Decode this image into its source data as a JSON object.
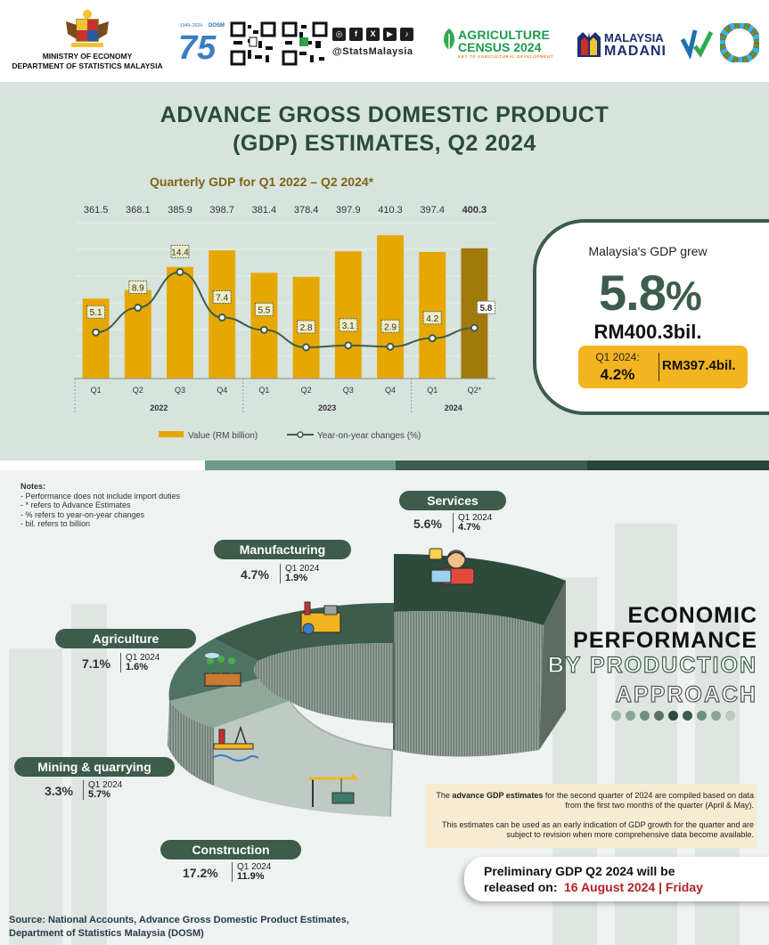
{
  "header": {
    "ministry_line1": "MINISTRY OF ECONOMY",
    "ministry_line2": "DEPARTMENT OF STATISTICS MALAYSIA",
    "dosm75_years": "1949–2024",
    "dosm75_label": "DOSM",
    "dosm75_number": "75",
    "social_handle": "@StatsMalaysia",
    "social_icons": [
      "instagram-icon",
      "facebook-icon",
      "x-icon",
      "youtube-icon",
      "tiktok-icon"
    ],
    "census_line1": "AGRICULTURE",
    "census_line2": "CENSUS 2024",
    "census_tagline": "KEY TO AGRICULTURAL DEVELOPMENT",
    "madani_line1": "MALAYSIA",
    "madani_line2": "MADANI"
  },
  "title": {
    "line1": "ADVANCE GROSS DOMESTIC PRODUCT",
    "line2": "(GDP) ESTIMATES, Q2 2024"
  },
  "chart_data": {
    "type": "bar",
    "title": "Quarterly GDP for Q1 2022 – Q2 2024*",
    "categories": [
      "Q1",
      "Q2",
      "Q3",
      "Q4",
      "Q1",
      "Q2",
      "Q3",
      "Q4",
      "Q1",
      "Q2*"
    ],
    "year_groups": [
      {
        "label": "2022",
        "count": 4
      },
      {
        "label": "2023",
        "count": 4
      },
      {
        "label": "2024",
        "count": 2
      }
    ],
    "series": [
      {
        "name": "Value (RM billion)",
        "type": "bar",
        "values": [
          361.5,
          368.1,
          385.9,
          398.7,
          381.4,
          378.4,
          397.9,
          410.3,
          397.4,
          400.3
        ],
        "labels": [
          "361.5",
          "368.1",
          "385.9",
          "398.7",
          "381.4",
          "378.4",
          "397.9",
          "410.3",
          "397.4",
          "400.3"
        ]
      },
      {
        "name": "Year-on-year changes (%)",
        "type": "line",
        "values": [
          5.1,
          8.9,
          14.4,
          7.4,
          5.5,
          2.8,
          3.1,
          2.9,
          4.2,
          5.8
        ],
        "labels": [
          "5.1",
          "8.9",
          "14.4",
          "7.4",
          "5.5",
          "2.8",
          "3.1",
          "2.9",
          "4.2",
          "5.8"
        ]
      }
    ],
    "colors": {
      "bar": "#e6a800",
      "bar_highlight": "#a27a0c",
      "line": "#3d5c4b"
    },
    "legend_position": "bottom"
  },
  "growth": {
    "label": "Malaysia's GDP grew",
    "value": "5.8",
    "unit": "%",
    "amount": "RM400.3bil.",
    "q1_label": "Q1 2024:",
    "q1_value": "4.2%",
    "q1_amount": "RM397.4bil."
  },
  "notes": {
    "title": "Notes:",
    "items": [
      "- Performance does not include import duties",
      "- * refers to Advance Estimates",
      "- % refers to year-on-year changes",
      "- bil. refers to billion"
    ]
  },
  "sectors": [
    {
      "name": "Services",
      "q2": "5.6%",
      "q1_label": "Q1 2024",
      "q1": "4.7%",
      "icon": "customer-service-icon"
    },
    {
      "name": "Manufacturing",
      "q2": "4.7%",
      "q1_label": "Q1 2024",
      "q1": "1.9%",
      "icon": "factory-icon"
    },
    {
      "name": "Agriculture",
      "q2": "7.1%",
      "q1_label": "Q1 2024",
      "q1": "1.6%",
      "icon": "crops-icon"
    },
    {
      "name": "Mining & quarrying",
      "q2": "3.3%",
      "q1_label": "Q1 2024",
      "q1": "5.7%",
      "icon": "oil-rig-icon"
    },
    {
      "name": "Construction",
      "q2": "17.2%",
      "q1_label": "Q1 2024",
      "q1": "11.9%",
      "icon": "crane-icon"
    }
  ],
  "economic": {
    "line1": "ECONOMIC",
    "line2": "PERFORMANCE",
    "line3": "BY PRODUCTION",
    "line4": "APPROACH"
  },
  "info": {
    "p1_prefix": "The ",
    "p1_bold": "advance GDP estimates",
    "p1_rest": " for the second quarter of 2024 are compiled based on data from the first two months of the quarter (April & May).",
    "p2": "This estimates can be used as an early indication of GDP growth for the quarter and are subject to revision when more comprehensive data become available."
  },
  "release": {
    "line1": "Preliminary GDP Q2 2024 will be",
    "line2_prefix": "released on:",
    "line2_date": "16 August 2024 | Friday"
  },
  "source": {
    "line1": "Source: National Accounts, Advance Gross Domestic Product Estimates,",
    "line2": "Department of Statistics Malaysia (DOSM)"
  }
}
